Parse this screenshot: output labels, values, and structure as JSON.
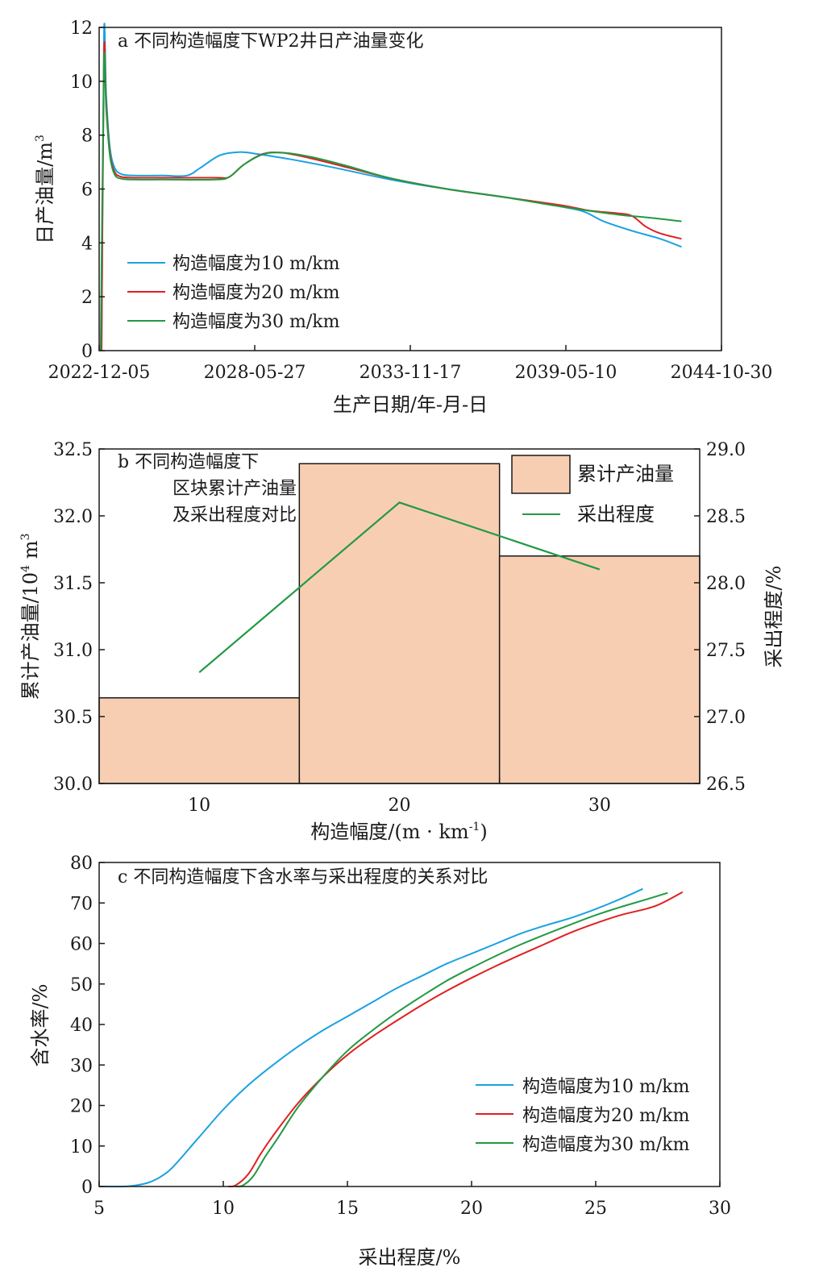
{
  "colors": {
    "blue": "#1ba1e2",
    "red": "#e02020",
    "green": "#229944",
    "bar": "#f8ceb2",
    "axis": "#1a1a1a"
  },
  "chart_data": [
    {
      "id": "a",
      "type": "line",
      "title": "a 不同构造幅度下WP2井日产油量变化",
      "xlabel": "生产日期/年-月-日",
      "ylabel": "日产油量/m³",
      "ylabel_main": "日产油量/m",
      "ylabel_sup": "3",
      "x_is_date": true,
      "xlim": [
        "2022-12-05",
        "2044-10-30"
      ],
      "xticks": [
        "2022-12-05",
        "2028-05-27",
        "2033-11-17",
        "2039-05-10",
        "2044-10-30"
      ],
      "ylim": [
        0,
        12
      ],
      "yticks": [
        0,
        2,
        4,
        6,
        8,
        10,
        12
      ],
      "legend": "lower-left",
      "series": [
        {
          "name": "构造幅度为10 m/km",
          "color": "#1ba1e2",
          "points": [
            [
              "2023-01-05",
              0
            ],
            [
              "2023-02-05",
              11.7
            ],
            [
              "2023-03-05",
              9.5
            ],
            [
              "2023-04-20",
              7.6
            ],
            [
              "2023-06-20",
              6.8
            ],
            [
              "2023-09-20",
              6.55
            ],
            [
              "2024-03-05",
              6.5
            ],
            [
              "2025-03-05",
              6.5
            ],
            [
              "2026-01-05",
              6.5
            ],
            [
              "2026-07-05",
              6.8
            ],
            [
              "2027-03-05",
              7.25
            ],
            [
              "2027-11-05",
              7.37
            ],
            [
              "2028-07-05",
              7.3
            ],
            [
              "2029-09-05",
              7.1
            ],
            [
              "2031-03-05",
              6.8
            ],
            [
              "2033-03-05",
              6.35
            ],
            [
              "2035-03-05",
              6.0
            ],
            [
              "2037-03-05",
              5.7
            ],
            [
              "2039-03-05",
              5.35
            ],
            [
              "2040-01-05",
              5.15
            ],
            [
              "2040-09-05",
              4.8
            ],
            [
              "2041-09-05",
              4.45
            ],
            [
              "2042-09-05",
              4.15
            ],
            [
              "2043-06-05",
              3.85
            ]
          ]
        },
        {
          "name": "构造幅度为20 m/km",
          "color": "#e02020",
          "points": [
            [
              "2023-01-05",
              0
            ],
            [
              "2023-02-05",
              11.0
            ],
            [
              "2023-03-05",
              9.2
            ],
            [
              "2023-04-20",
              7.4
            ],
            [
              "2023-06-20",
              6.65
            ],
            [
              "2023-09-20",
              6.45
            ],
            [
              "2024-03-05",
              6.42
            ],
            [
              "2025-03-05",
              6.42
            ],
            [
              "2027-01-05",
              6.42
            ],
            [
              "2027-07-05",
              6.45
            ],
            [
              "2028-01-05",
              6.9
            ],
            [
              "2028-09-05",
              7.3
            ],
            [
              "2029-05-05",
              7.35
            ],
            [
              "2030-05-05",
              7.15
            ],
            [
              "2031-09-05",
              6.8
            ],
            [
              "2033-03-05",
              6.4
            ],
            [
              "2035-03-05",
              6.0
            ],
            [
              "2037-03-05",
              5.7
            ],
            [
              "2039-03-05",
              5.4
            ],
            [
              "2040-03-05",
              5.2
            ],
            [
              "2041-03-05",
              5.1
            ],
            [
              "2041-09-05",
              5.0
            ],
            [
              "2042-03-05",
              4.6
            ],
            [
              "2042-09-05",
              4.35
            ],
            [
              "2043-06-05",
              4.15
            ]
          ]
        },
        {
          "name": "构造幅度为30 m/km",
          "color": "#229944",
          "points": [
            [
              "2022-12-25",
              0
            ],
            [
              "2023-02-05",
              10.6
            ],
            [
              "2023-03-05",
              9.0
            ],
            [
              "2023-04-20",
              7.3
            ],
            [
              "2023-06-20",
              6.55
            ],
            [
              "2023-09-20",
              6.38
            ],
            [
              "2024-03-05",
              6.35
            ],
            [
              "2025-03-05",
              6.35
            ],
            [
              "2027-01-05",
              6.35
            ],
            [
              "2027-07-05",
              6.45
            ],
            [
              "2028-01-05",
              6.9
            ],
            [
              "2028-09-05",
              7.28
            ],
            [
              "2029-05-05",
              7.35
            ],
            [
              "2030-05-05",
              7.2
            ],
            [
              "2031-09-05",
              6.85
            ],
            [
              "2033-03-05",
              6.4
            ],
            [
              "2035-03-05",
              6.0
            ],
            [
              "2037-03-05",
              5.7
            ],
            [
              "2039-03-05",
              5.35
            ],
            [
              "2041-03-05",
              5.05
            ],
            [
              "2042-03-05",
              4.95
            ],
            [
              "2043-06-05",
              4.8
            ]
          ]
        }
      ]
    },
    {
      "id": "b",
      "type": "bar",
      "title_lines": [
        "b 不同构造幅度下",
        "区块累计产油量",
        "及采出程度对比"
      ],
      "xlabel": "构造幅度/(m · km⁻¹)",
      "xlabel_main": "构造幅度/(m · km",
      "xlabel_sup": "-1",
      "xlabel_end": ")",
      "ylabel": "累计产油量/10⁴ m³",
      "ylabel_main": "累计产油量/10",
      "ylabel_sup1": "4",
      "ylabel_mid": " m",
      "ylabel_sup2": "3",
      "y2label": "采出程度/%",
      "categories": [
        "10",
        "20",
        "30"
      ],
      "ylim": [
        30.0,
        32.5
      ],
      "yticks": [
        "30.0",
        "30.5",
        "31.0",
        "31.5",
        "32.0",
        "32.5"
      ],
      "y2lim": [
        26.5,
        29.0
      ],
      "y2ticks": [
        "26.5",
        "27.0",
        "27.5",
        "28.0",
        "28.5",
        "29.0"
      ],
      "legend": "top-right",
      "series": [
        {
          "name": "累计产油量",
          "kind": "bar",
          "axis": "left",
          "values": [
            30.64,
            32.39,
            31.7
          ]
        },
        {
          "name": "采出程度",
          "kind": "line",
          "axis": "right",
          "values": [
            27.33,
            28.6,
            28.1
          ]
        }
      ]
    },
    {
      "id": "c",
      "type": "line",
      "title": "c 不同构造幅度下含水率与采出程度的关系对比",
      "xlabel": "采出程度/%",
      "ylabel": "含水率/%",
      "xlim": [
        5,
        30
      ],
      "xticks": [
        5,
        10,
        15,
        20,
        25,
        30
      ],
      "ylim": [
        0,
        80
      ],
      "yticks": [
        0,
        10,
        20,
        30,
        40,
        50,
        60,
        70,
        80
      ],
      "legend": "lower-right",
      "series": [
        {
          "name": "构造幅度为10 m/km",
          "color": "#1ba1e2",
          "points": [
            [
              5.0,
              0
            ],
            [
              6.0,
              0
            ],
            [
              6.5,
              0.3
            ],
            [
              7.0,
              1.0
            ],
            [
              7.5,
              2.5
            ],
            [
              8.0,
              5.0
            ],
            [
              9.0,
              12.0
            ],
            [
              10.0,
              19.0
            ],
            [
              11.0,
              25.0
            ],
            [
              12.0,
              30.0
            ],
            [
              13.0,
              34.5
            ],
            [
              14.0,
              38.5
            ],
            [
              15.0,
              42.0
            ],
            [
              16.0,
              45.5
            ],
            [
              17.0,
              49.0
            ],
            [
              18.0,
              52.0
            ],
            [
              19.0,
              55.0
            ],
            [
              20.0,
              57.5
            ],
            [
              21.0,
              60.0
            ],
            [
              22.0,
              62.5
            ],
            [
              23.0,
              64.5
            ],
            [
              24.0,
              66.3
            ],
            [
              25.0,
              68.5
            ],
            [
              26.0,
              71.0
            ],
            [
              26.9,
              73.5
            ]
          ]
        },
        {
          "name": "构造幅度为20 m/km",
          "color": "#e02020",
          "points": [
            [
              10.2,
              0
            ],
            [
              10.5,
              0.3
            ],
            [
              11.0,
              3.0
            ],
            [
              11.5,
              8.0
            ],
            [
              12.0,
              12.5
            ],
            [
              13.0,
              20.5
            ],
            [
              14.0,
              27.0
            ],
            [
              15.0,
              32.5
            ],
            [
              16.0,
              37.0
            ],
            [
              17.0,
              41.0
            ],
            [
              18.0,
              44.8
            ],
            [
              19.0,
              48.3
            ],
            [
              20.0,
              51.5
            ],
            [
              21.0,
              54.5
            ],
            [
              22.0,
              57.3
            ],
            [
              23.0,
              60.0
            ],
            [
              24.0,
              62.7
            ],
            [
              25.0,
              65.0
            ],
            [
              26.0,
              67.0
            ],
            [
              27.0,
              68.5
            ],
            [
              27.5,
              69.5
            ],
            [
              28.0,
              71.0
            ],
            [
              28.5,
              72.7
            ]
          ]
        },
        {
          "name": "构造幅度为30 m/km",
          "color": "#229944",
          "points": [
            [
              10.5,
              0
            ],
            [
              10.8,
              0.3
            ],
            [
              11.2,
              2.5
            ],
            [
              11.7,
              7.5
            ],
            [
              12.2,
              12.0
            ],
            [
              13.0,
              19.5
            ],
            [
              14.0,
              27.0
            ],
            [
              15.0,
              33.5
            ],
            [
              16.0,
              38.5
            ],
            [
              17.0,
              43.0
            ],
            [
              18.0,
              47.0
            ],
            [
              19.0,
              50.8
            ],
            [
              20.0,
              54.0
            ],
            [
              21.0,
              57.0
            ],
            [
              22.0,
              59.8
            ],
            [
              23.0,
              62.3
            ],
            [
              24.0,
              64.7
            ],
            [
              25.0,
              67.0
            ],
            [
              26.0,
              69.0
            ],
            [
              27.0,
              70.8
            ],
            [
              27.9,
              72.5
            ]
          ]
        }
      ]
    }
  ]
}
